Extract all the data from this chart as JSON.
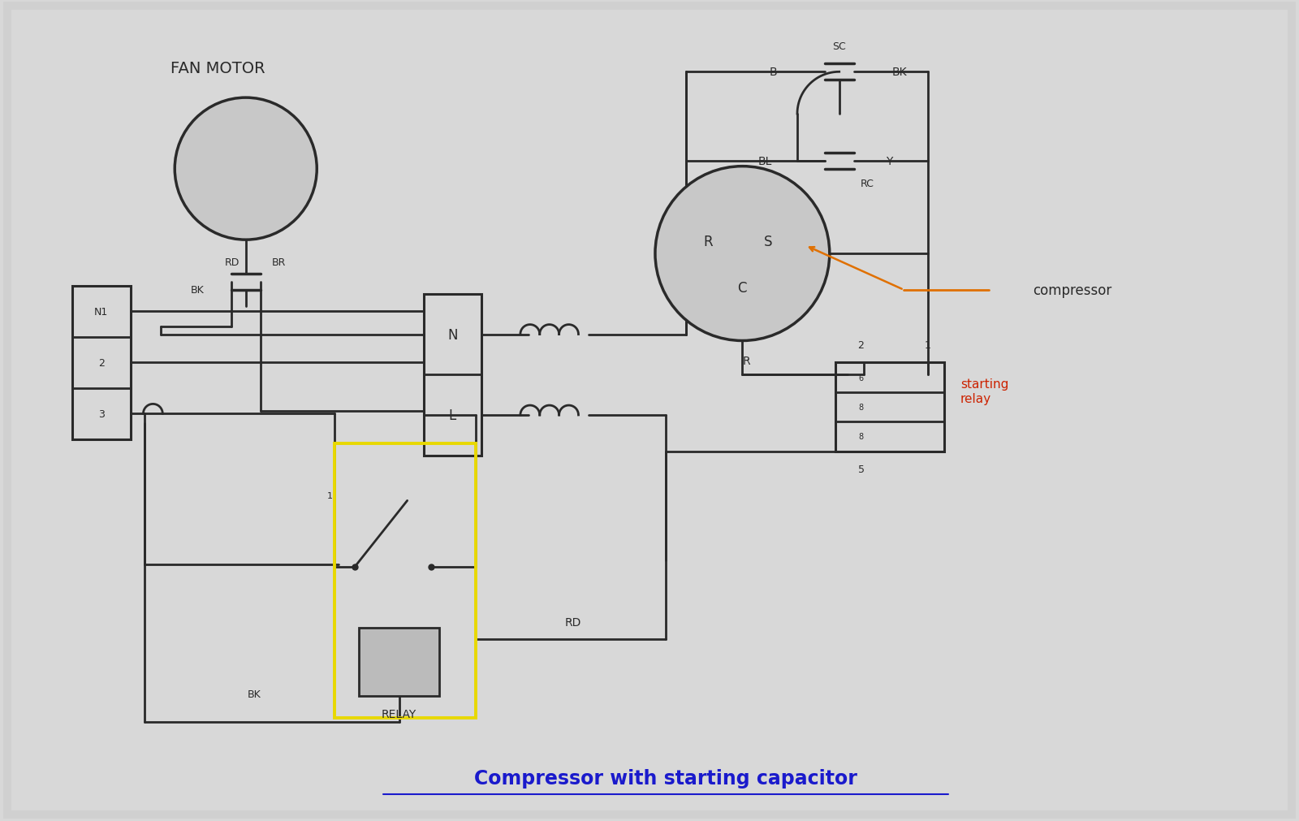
{
  "bg_color": "#d8d8d8",
  "line_color": "#2a2a2a",
  "title": "Compressor with starting capacitor",
  "title_color": "#1a1acc",
  "title_fontsize": 17,
  "orange_color": "#e07000",
  "red_color": "#cc2200",
  "yellow_color": "#e8d800",
  "fan_motor_label": "FAN MOTOR",
  "compressor_label": "compressor",
  "starting_relay_label": "starting\nrelay",
  "relay_label": "RELAY",
  "labels": {
    "N1": "N1",
    "two": "2",
    "three": "3",
    "N": "N",
    "L": "L",
    "BK": "BK",
    "BR": "BR",
    "RD": "RD",
    "B": "B",
    "SC": "SC",
    "RC": "RC",
    "BL": "BL",
    "Y": "Y",
    "R": "R",
    "S": "S",
    "C": "C",
    "sr2": "2",
    "sr1": "1",
    "sr5": "5",
    "relay_label": "RELAY"
  }
}
